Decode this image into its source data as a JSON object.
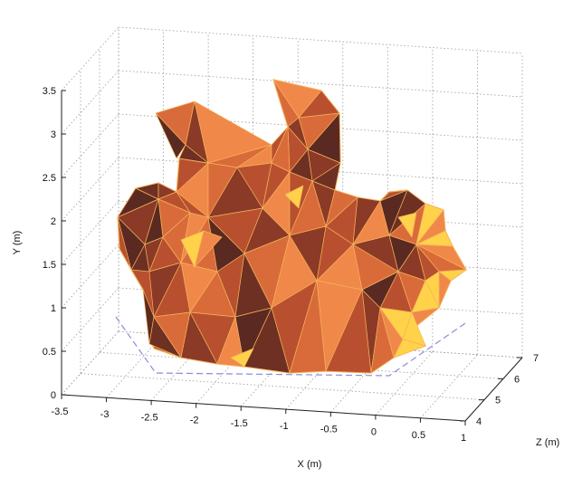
{
  "chart_data": {
    "type": "surface3d-mesh",
    "title": "",
    "xlabel": "X (m)",
    "ylabel": "Y (m)",
    "zlabel": "Z (m)",
    "x_ticks": [
      "-3.5",
      "-3",
      "-2.5",
      "-2",
      "-1.5",
      "-1",
      "-0.5",
      "0",
      "0.5",
      "1"
    ],
    "y_ticks": [
      "0",
      "0.5",
      "1",
      "1.5",
      "2",
      "2.5",
      "3",
      "3.5"
    ],
    "z_ticks": [
      "4",
      "5",
      "6",
      "7"
    ],
    "xlim": [
      -3.5,
      1
    ],
    "ylim": [
      0,
      3.5
    ],
    "zlim": [
      4,
      7
    ],
    "grid": true,
    "footprint_outline": "dashed-blue",
    "colors": {
      "face_dark": "#5a2a22",
      "face_mid": "#b8502f",
      "face_light": "#f0884a",
      "face_highlight": "#ffd24a",
      "edge": "#f5b25a",
      "grid": "#9a9a9a",
      "footprint": "#8c8cd8"
    }
  }
}
